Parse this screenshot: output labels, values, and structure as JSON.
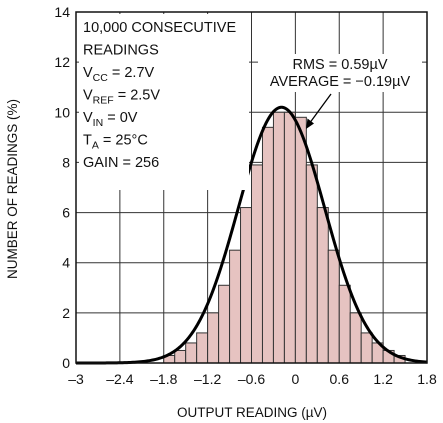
{
  "chart_data": {
    "type": "bar",
    "xlabel": "OUTPUT READING (µV)",
    "ylabel": "NUMBER OF READINGS (%)",
    "xlim": [
      -3,
      1.8
    ],
    "ylim": [
      0,
      14
    ],
    "xticks": [
      -3,
      -2.4,
      -1.8,
      -1.2,
      -0.6,
      0,
      0.6,
      1.2,
      1.8
    ],
    "xtick_labels": [
      "–3",
      "–2.4",
      "–1.8",
      "–1.2",
      "–0.6",
      "0",
      "0.6",
      "1.2",
      "1.8"
    ],
    "yticks": [
      0,
      2,
      4,
      6,
      8,
      10,
      12,
      14
    ],
    "ytick_labels": [
      "0",
      "2",
      "4",
      "6",
      "8",
      "10",
      "12",
      "14"
    ],
    "grid": true,
    "bin_width": 0.15,
    "bins": {
      "x": [
        -1.725,
        -1.575,
        -1.425,
        -1.275,
        -1.125,
        -0.975,
        -0.825,
        -0.675,
        -0.525,
        -0.375,
        -0.225,
        -0.075,
        0.075,
        0.225,
        0.375,
        0.525,
        0.675,
        0.825,
        0.975,
        1.125,
        1.275,
        1.425
      ],
      "values": [
        0.3,
        0.5,
        0.8,
        1.2,
        2.0,
        3.1,
        4.5,
        6.2,
        7.9,
        9.4,
        10.0,
        10.0,
        9.8,
        7.9,
        6.2,
        4.5,
        3.1,
        2.0,
        1.2,
        0.8,
        0.5,
        0.3
      ]
    },
    "curve": {
      "description_type": "gaussian",
      "mean": -0.19,
      "sigma": 0.59,
      "peak": 10.2
    },
    "annotations": {
      "box_lines": [
        {
          "text": "10,000 CONSECUTIVE"
        },
        {
          "text": "READINGS"
        },
        {
          "base": "V",
          "sub": "CC",
          "rest": " = 2.7V"
        },
        {
          "base": "V",
          "sub": "REF",
          "rest": " = 2.5V"
        },
        {
          "base": "V",
          "sub": "IN",
          "rest": " = 0V"
        },
        {
          "base": "T",
          "sub": "A",
          "rest": " = 25°C"
        },
        {
          "text": "GAIN = 256"
        }
      ],
      "rms": "RMS = 0.59µV",
      "average": "AVERAGE = −0.19µV"
    },
    "colors": {
      "bar_fill": "#e6c3c1",
      "bar_stroke": "#333333",
      "curve": "#000000",
      "grid": "#333333"
    }
  }
}
